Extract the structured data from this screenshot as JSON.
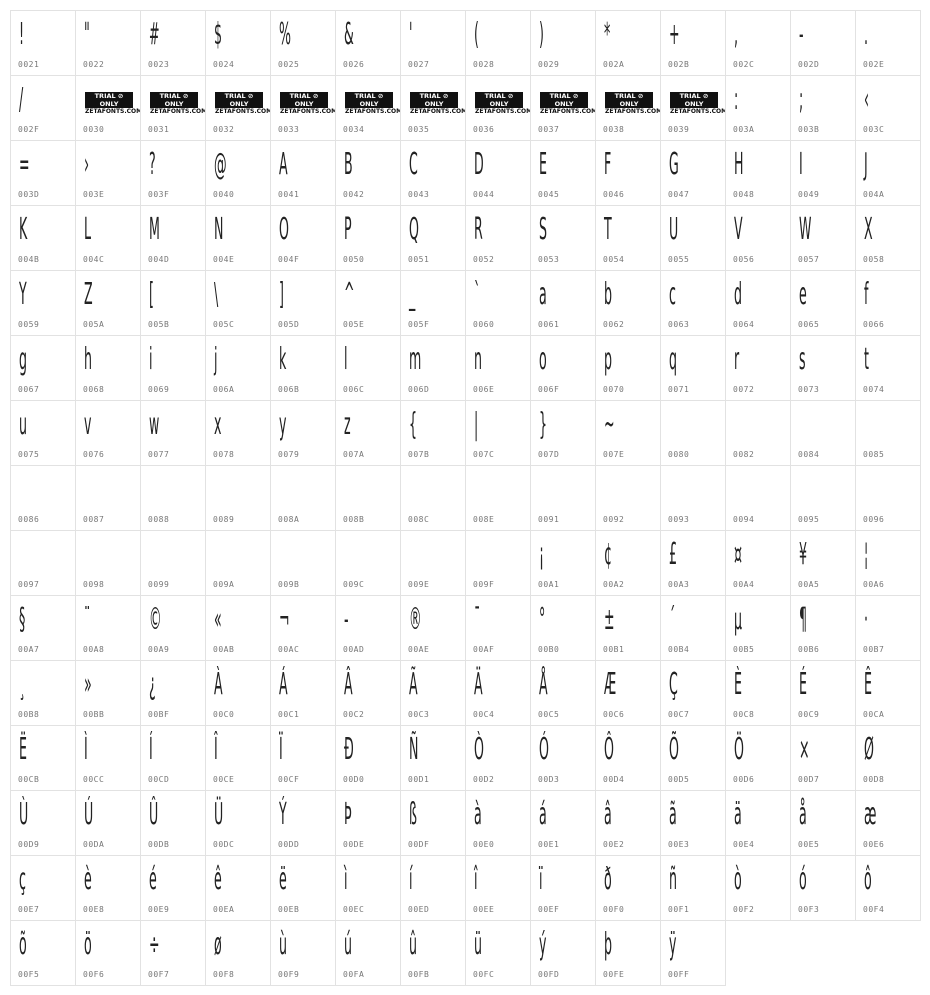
{
  "trial_logo": {
    "line1": "TRIAL ⊘ ONLY",
    "line2": "ZETAFONTS.COM"
  },
  "cells": [
    [
      "0021",
      "!"
    ],
    [
      "0022",
      "\""
    ],
    [
      "0023",
      "#"
    ],
    [
      "0024",
      "$"
    ],
    [
      "0025",
      "%"
    ],
    [
      "0026",
      "&"
    ],
    [
      "0027",
      "'"
    ],
    [
      "0028",
      "("
    ],
    [
      "0029",
      ")"
    ],
    [
      "002A",
      "*"
    ],
    [
      "002B",
      "+"
    ],
    [
      "002C",
      ","
    ],
    [
      "002D",
      "-"
    ],
    [
      "002E",
      "."
    ],
    [
      "002F",
      "/"
    ],
    [
      "0030",
      "#logo"
    ],
    [
      "0031",
      "#logo"
    ],
    [
      "0032",
      "#logo"
    ],
    [
      "0033",
      "#logo"
    ],
    [
      "0034",
      "#logo"
    ],
    [
      "0035",
      "#logo"
    ],
    [
      "0036",
      "#logo"
    ],
    [
      "0037",
      "#logo"
    ],
    [
      "0038",
      "#logo"
    ],
    [
      "0039",
      "#logo"
    ],
    [
      "003A",
      ":"
    ],
    [
      "003B",
      ";"
    ],
    [
      "003C",
      "‹"
    ],
    [
      "003D",
      "="
    ],
    [
      "003E",
      "›"
    ],
    [
      "003F",
      "?"
    ],
    [
      "0040",
      "@"
    ],
    [
      "0041",
      "A"
    ],
    [
      "0042",
      "B"
    ],
    [
      "0043",
      "C"
    ],
    [
      "0044",
      "D"
    ],
    [
      "0045",
      "E"
    ],
    [
      "0046",
      "F"
    ],
    [
      "0047",
      "G"
    ],
    [
      "0048",
      "H"
    ],
    [
      "0049",
      "I"
    ],
    [
      "004A",
      "J"
    ],
    [
      "004B",
      "K"
    ],
    [
      "004C",
      "L"
    ],
    [
      "004D",
      "M"
    ],
    [
      "004E",
      "N"
    ],
    [
      "004F",
      "O"
    ],
    [
      "0050",
      "P"
    ],
    [
      "0051",
      "Q"
    ],
    [
      "0052",
      "R"
    ],
    [
      "0053",
      "S"
    ],
    [
      "0054",
      "T"
    ],
    [
      "0055",
      "U"
    ],
    [
      "0056",
      "V"
    ],
    [
      "0057",
      "W"
    ],
    [
      "0058",
      "X"
    ],
    [
      "0059",
      "Y"
    ],
    [
      "005A",
      "Z"
    ],
    [
      "005B",
      "["
    ],
    [
      "005C",
      "\\"
    ],
    [
      "005D",
      "]"
    ],
    [
      "005E",
      "^"
    ],
    [
      "005F",
      "_"
    ],
    [
      "0060",
      "`"
    ],
    [
      "0061",
      "a"
    ],
    [
      "0062",
      "b"
    ],
    [
      "0063",
      "c"
    ],
    [
      "0064",
      "d"
    ],
    [
      "0065",
      "e"
    ],
    [
      "0066",
      "f"
    ],
    [
      "0067",
      "g"
    ],
    [
      "0068",
      "h"
    ],
    [
      "0069",
      "i"
    ],
    [
      "006A",
      "j"
    ],
    [
      "006B",
      "k"
    ],
    [
      "006C",
      "l"
    ],
    [
      "006D",
      "m"
    ],
    [
      "006E",
      "n"
    ],
    [
      "006F",
      "o"
    ],
    [
      "0070",
      "p"
    ],
    [
      "0071",
      "q"
    ],
    [
      "0072",
      "r"
    ],
    [
      "0073",
      "s"
    ],
    [
      "0074",
      "t"
    ],
    [
      "0075",
      "u"
    ],
    [
      "0076",
      "v"
    ],
    [
      "0077",
      "w"
    ],
    [
      "0078",
      "x"
    ],
    [
      "0079",
      "y"
    ],
    [
      "007A",
      "z"
    ],
    [
      "007B",
      "{"
    ],
    [
      "007C",
      "|"
    ],
    [
      "007D",
      "}"
    ],
    [
      "007E",
      "~"
    ],
    [
      "0080",
      ""
    ],
    [
      "0082",
      ""
    ],
    [
      "0084",
      ""
    ],
    [
      "0085",
      ""
    ],
    [
      "0086",
      ""
    ],
    [
      "0087",
      ""
    ],
    [
      "0088",
      ""
    ],
    [
      "0089",
      ""
    ],
    [
      "008A",
      ""
    ],
    [
      "008B",
      ""
    ],
    [
      "008C",
      ""
    ],
    [
      "008E",
      ""
    ],
    [
      "0091",
      ""
    ],
    [
      "0092",
      ""
    ],
    [
      "0093",
      ""
    ],
    [
      "0094",
      ""
    ],
    [
      "0095",
      ""
    ],
    [
      "0096",
      ""
    ],
    [
      "0097",
      ""
    ],
    [
      "0098",
      ""
    ],
    [
      "0099",
      ""
    ],
    [
      "009A",
      ""
    ],
    [
      "009B",
      ""
    ],
    [
      "009C",
      ""
    ],
    [
      "009E",
      ""
    ],
    [
      "009F",
      ""
    ],
    [
      "00A1",
      "¡"
    ],
    [
      "00A2",
      "¢"
    ],
    [
      "00A3",
      "£"
    ],
    [
      "00A4",
      "¤"
    ],
    [
      "00A5",
      "¥"
    ],
    [
      "00A6",
      "¦"
    ],
    [
      "00A7",
      "§"
    ],
    [
      "00A8",
      "¨"
    ],
    [
      "00A9",
      "©"
    ],
    [
      "00AB",
      "«"
    ],
    [
      "00AC",
      "¬"
    ],
    [
      "00AD",
      "-"
    ],
    [
      "00AE",
      "®"
    ],
    [
      "00AF",
      "¯"
    ],
    [
      "00B0",
      "°"
    ],
    [
      "00B1",
      "±"
    ],
    [
      "00B4",
      "´"
    ],
    [
      "00B5",
      "µ"
    ],
    [
      "00B6",
      "¶"
    ],
    [
      "00B7",
      "·"
    ],
    [
      "00B8",
      "¸"
    ],
    [
      "00BB",
      "»"
    ],
    [
      "00BF",
      "¿"
    ],
    [
      "00C0",
      "À"
    ],
    [
      "00C1",
      "Á"
    ],
    [
      "00C2",
      "Â"
    ],
    [
      "00C3",
      "Ã"
    ],
    [
      "00C4",
      "Ä"
    ],
    [
      "00C5",
      "Å"
    ],
    [
      "00C6",
      "Æ"
    ],
    [
      "00C7",
      "Ç"
    ],
    [
      "00C8",
      "È"
    ],
    [
      "00C9",
      "É"
    ],
    [
      "00CA",
      "Ê"
    ],
    [
      "00CB",
      "Ë"
    ],
    [
      "00CC",
      "Ì"
    ],
    [
      "00CD",
      "Í"
    ],
    [
      "00CE",
      "Î"
    ],
    [
      "00CF",
      "Ï"
    ],
    [
      "00D0",
      "Ð"
    ],
    [
      "00D1",
      "Ñ"
    ],
    [
      "00D2",
      "Ò"
    ],
    [
      "00D3",
      "Ó"
    ],
    [
      "00D4",
      "Ô"
    ],
    [
      "00D5",
      "Õ"
    ],
    [
      "00D6",
      "Ö"
    ],
    [
      "00D7",
      "×"
    ],
    [
      "00D8",
      "Ø"
    ],
    [
      "00D9",
      "Ù"
    ],
    [
      "00DA",
      "Ú"
    ],
    [
      "00DB",
      "Û"
    ],
    [
      "00DC",
      "Ü"
    ],
    [
      "00DD",
      "Ý"
    ],
    [
      "00DE",
      "Þ"
    ],
    [
      "00DF",
      "ß"
    ],
    [
      "00E0",
      "à"
    ],
    [
      "00E1",
      "á"
    ],
    [
      "00E2",
      "â"
    ],
    [
      "00E3",
      "ã"
    ],
    [
      "00E4",
      "ä"
    ],
    [
      "00E5",
      "å"
    ],
    [
      "00E6",
      "æ"
    ],
    [
      "00E7",
      "ç"
    ],
    [
      "00E8",
      "è"
    ],
    [
      "00E9",
      "é"
    ],
    [
      "00EA",
      "ê"
    ],
    [
      "00EB",
      "ë"
    ],
    [
      "00EC",
      "ì"
    ],
    [
      "00ED",
      "í"
    ],
    [
      "00EE",
      "î"
    ],
    [
      "00EF",
      "ï"
    ],
    [
      "00F0",
      "ð"
    ],
    [
      "00F1",
      "ñ"
    ],
    [
      "00F2",
      "ò"
    ],
    [
      "00F3",
      "ó"
    ],
    [
      "00F4",
      "ô"
    ],
    [
      "00F5",
      "õ"
    ],
    [
      "00F6",
      "ö"
    ],
    [
      "00F7",
      "÷"
    ],
    [
      "00F8",
      "ø"
    ],
    [
      "00F9",
      "ù"
    ],
    [
      "00FA",
      "ú"
    ],
    [
      "00FB",
      "û"
    ],
    [
      "00FC",
      "ü"
    ],
    [
      "00FD",
      "ý"
    ],
    [
      "00FE",
      "þ"
    ],
    [
      "00FF",
      "ÿ"
    ]
  ]
}
